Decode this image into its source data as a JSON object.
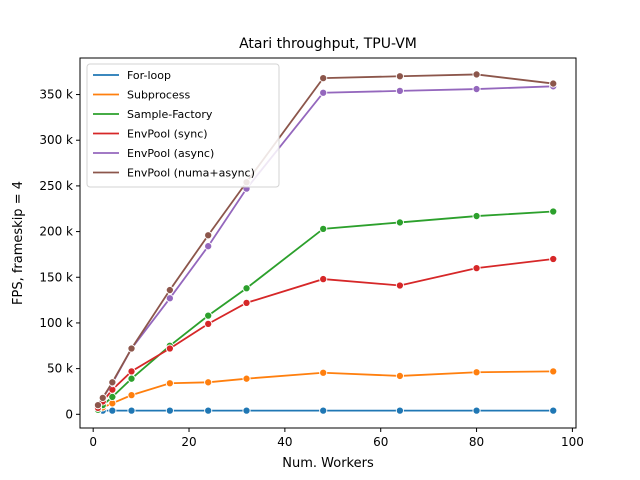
{
  "chart_data": {
    "type": "line",
    "title": "Atari throughput, TPU-VM",
    "xlabel": "Num. Workers",
    "ylabel": "FPS, frameskip = 4",
    "xlim": [
      -2.75,
      100.75
    ],
    "ylim": [
      -15000,
      390000
    ],
    "xticks": [
      0,
      20,
      40,
      60,
      80,
      100
    ],
    "xtick_labels": [
      "0",
      "20",
      "40",
      "60",
      "80",
      "100"
    ],
    "yticks": [
      0,
      50000,
      100000,
      150000,
      200000,
      250000,
      300000,
      350000
    ],
    "ytick_labels": [
      "0",
      "50 k",
      "100 k",
      "150 k",
      "200 k",
      "250 k",
      "300 k",
      "350 k"
    ],
    "grid": false,
    "legend_position": "top-left",
    "markers": "circle",
    "x": [
      1,
      2,
      4,
      8,
      16,
      24,
      32,
      48,
      64,
      80,
      96
    ],
    "series": [
      {
        "name": "For-loop",
        "color": "#1f77b4",
        "values": [
          4000,
          4000,
          4000,
          4000,
          4000,
          4000,
          4000,
          4000,
          4000,
          4000,
          4000
        ]
      },
      {
        "name": "Subprocess",
        "color": "#ff7f0e",
        "values": [
          4500,
          7500,
          12000,
          21000,
          34000,
          35000,
          39000,
          45500,
          42000,
          46000,
          47000
        ]
      },
      {
        "name": "Sample-Factory",
        "color": "#2ca02c",
        "values": [
          5000,
          10000,
          19000,
          39000,
          75000,
          108000,
          138000,
          203000,
          210000,
          217000,
          222000
        ]
      },
      {
        "name": "EnvPool (sync)",
        "color": "#d62728",
        "values": [
          7000,
          14000,
          27000,
          47000,
          72000,
          99000,
          122000,
          148000,
          141000,
          160000,
          170000
        ]
      },
      {
        "name": "EnvPool (async)",
        "color": "#9467bd",
        "values": [
          10000,
          18000,
          34000,
          72000,
          127000,
          184000,
          247000,
          352000,
          354000,
          356000,
          359000
        ]
      },
      {
        "name": "EnvPool (numa+async)",
        "color": "#8c564b",
        "values": [
          10000,
          18000,
          35000,
          72000,
          136000,
          196000,
          254000,
          368000,
          370000,
          372000,
          362000
        ]
      }
    ]
  }
}
